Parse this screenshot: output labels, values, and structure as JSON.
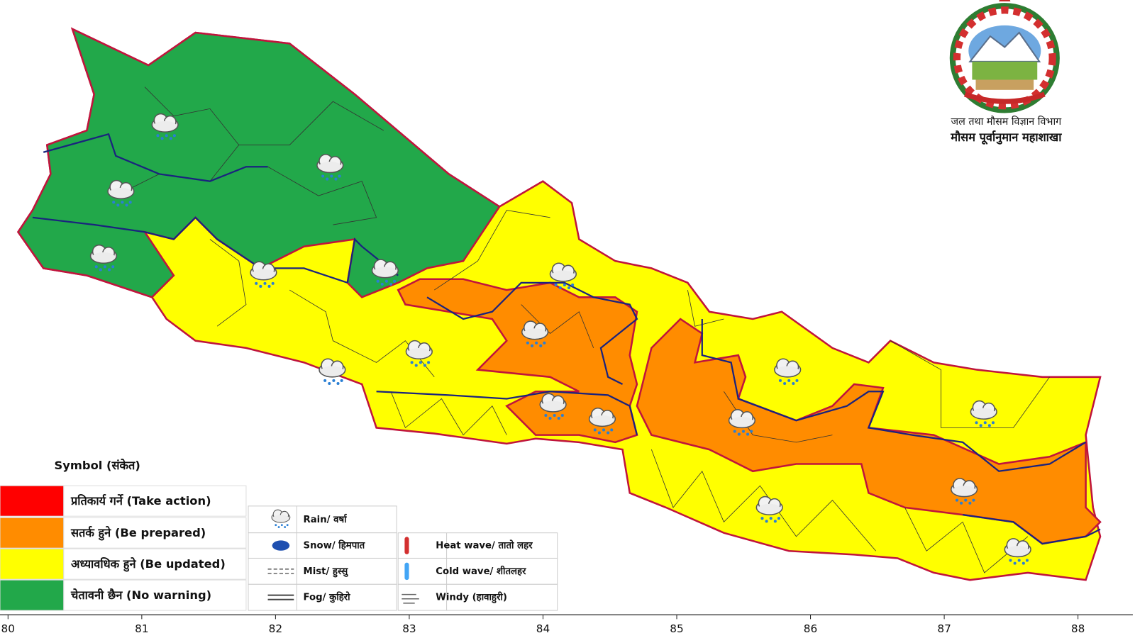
{
  "header": {
    "line1": "जल तथा मौसम विज्ञान विभाग",
    "line2": "मौसम पूर्वानुमान महाशाखा"
  },
  "legend": {
    "title": "Symbol (संकेत)",
    "warnings": [
      {
        "label": "प्रतिकार्य गर्ने (Take action)",
        "color": "#ff0000"
      },
      {
        "label": "सतर्क हुने (Be prepared)",
        "color": "#ff8c00"
      },
      {
        "label": "अध्यावधिक हुने (Be updated)",
        "color": "#ffff00"
      },
      {
        "label": "चेतावनी छैन (No warning)",
        "color": "#22a84a"
      }
    ],
    "symbols": [
      "Rain/ वर्षा",
      "Snow/ हिमपात",
      "Mist/ हुस्सु",
      "Fog/ कुहिरो",
      "Heat wave/ तातो लहर",
      "Cold wave/ शीतलहर",
      "Windy (हावाहुरी)"
    ]
  },
  "axis": {
    "xlim": [
      79.94,
      88.41
    ],
    "xticks": [
      80,
      81,
      82,
      83,
      84,
      85,
      86,
      87,
      88
    ]
  }
}
